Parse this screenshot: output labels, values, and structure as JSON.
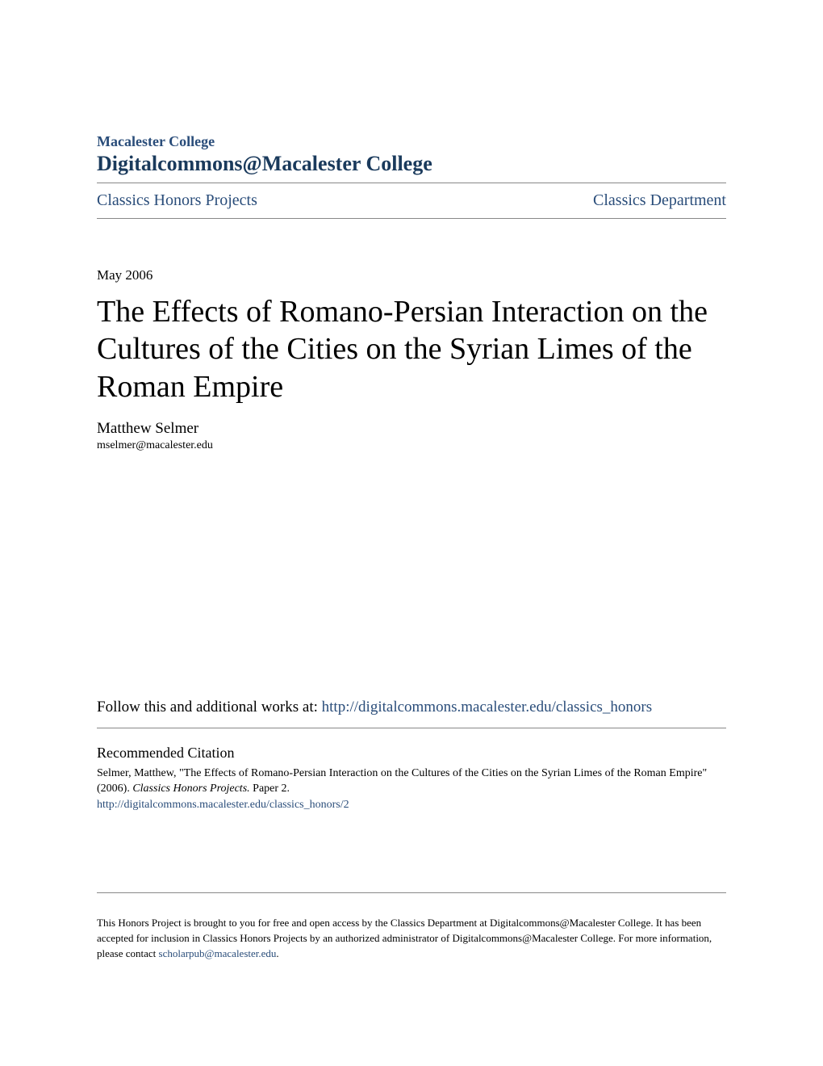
{
  "header": {
    "institution": "Macalester College",
    "repository": "Digitalcommons@Macalester College"
  },
  "nav": {
    "left": "Classics Honors Projects",
    "right": "Classics Department"
  },
  "date": "May 2006",
  "title": "The Effects of Romano-Persian Interaction on the Cultures of the Cities on the Syrian Limes of the Roman Empire",
  "author": {
    "name": "Matthew Selmer",
    "email": "mselmer@macalester.edu"
  },
  "follow": {
    "prefix": "Follow this and additional works at: ",
    "url": "http://digitalcommons.macalester.edu/classics_honors"
  },
  "citation": {
    "heading": "Recommended Citation",
    "text_before_italic": "Selmer, Matthew, \"The Effects of Romano-Persian Interaction on the Cultures of the Cities on the Syrian Limes of the Roman Empire\" (2006). ",
    "italic_part": "Classics Honors Projects.",
    "text_after_italic": " Paper 2.",
    "url": "http://digitalcommons.macalester.edu/classics_honors/2"
  },
  "footer": {
    "text_before_link": "This Honors Project is brought to you for free and open access by the Classics Department at Digitalcommons@Macalester College. It has been accepted for inclusion in Classics Honors Projects by an authorized administrator of Digitalcommons@Macalester College. For more information, please contact ",
    "link_text": "scholarpub@macalester.edu",
    "text_after_link": "."
  },
  "colors": {
    "link_color": "#2a4d7a",
    "text_color": "#000000",
    "border_color": "#888888",
    "background": "#ffffff"
  }
}
